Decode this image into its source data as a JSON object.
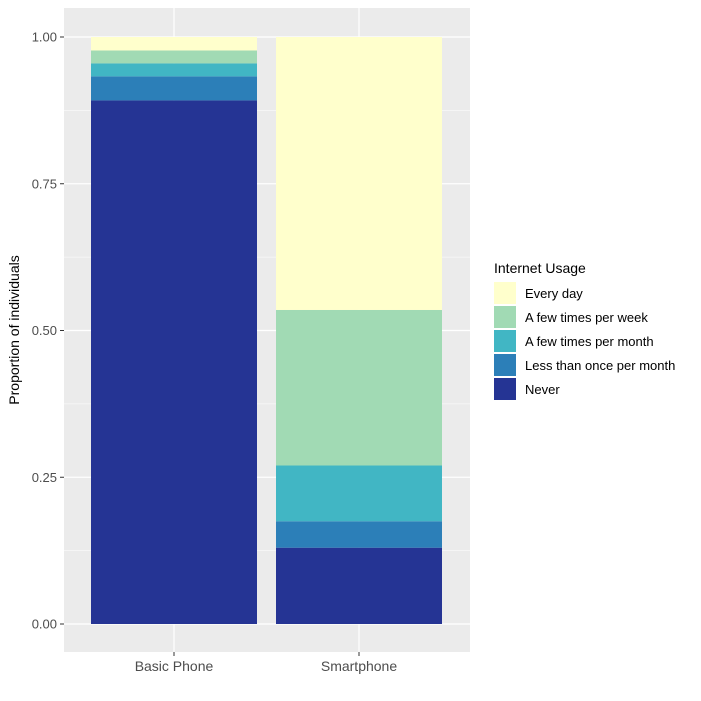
{
  "chart_data": {
    "type": "bar",
    "stacked": true,
    "categories": [
      "Basic Phone",
      "Smartphone"
    ],
    "ylabel": "Proportion of individuals",
    "xlabel": "",
    "ylim": [
      0,
      1
    ],
    "y_ticks": [
      "0.00",
      "0.25",
      "0.50",
      "0.75",
      "1.00"
    ],
    "y_tick_values": [
      0,
      0.25,
      0.5,
      0.75,
      1.0
    ],
    "legend_title": "Internet Usage",
    "legend_position": "right",
    "grid": true,
    "series": [
      {
        "name": "Never",
        "color": "#253494",
        "values": [
          0.892,
          0.13
        ]
      },
      {
        "name": "Less than once per month",
        "color": "#2c7fb8",
        "values": [
          0.041,
          0.045
        ]
      },
      {
        "name": "A few times per month",
        "color": "#41b6c4",
        "values": [
          0.022,
          0.095
        ]
      },
      {
        "name": "A few times per week",
        "color": "#a1dab4",
        "values": [
          0.022,
          0.265
        ]
      },
      {
        "name": "Every day",
        "color": "#ffffcc",
        "values": [
          0.023,
          0.465
        ]
      }
    ],
    "legend_order": [
      "Every day",
      "A few times per week",
      "A few times per month",
      "Less than once per month",
      "Never"
    ]
  }
}
